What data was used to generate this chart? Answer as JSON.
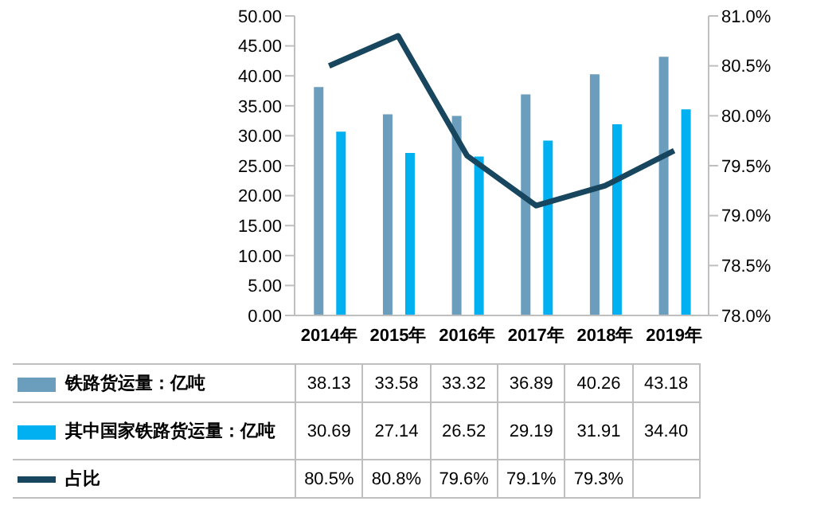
{
  "chart_data": {
    "type": "bar",
    "categories": [
      "2014年",
      "2015年",
      "2016年",
      "2017年",
      "2018年",
      "2019年"
    ],
    "series": [
      {
        "name": "铁路货运量：亿吨",
        "color": "#6b9dbd",
        "values": [
          38.13,
          33.58,
          33.32,
          36.89,
          40.26,
          43.18
        ],
        "value_labels": [
          "38.13",
          "33.58",
          "33.32",
          "36.89",
          "40.26",
          "43.18"
        ]
      },
      {
        "name": "其中国家铁路货运量：亿吨",
        "color": "#00b0f0",
        "values": [
          30.69,
          27.14,
          26.52,
          29.19,
          31.91,
          34.4
        ],
        "value_labels": [
          "30.69",
          "27.14",
          "26.52",
          "29.19",
          "31.91",
          "34.40"
        ]
      },
      {
        "name": "占比",
        "type": "line",
        "axis": "y2",
        "color": "#17465e",
        "values": [
          80.5,
          80.8,
          79.6,
          79.1,
          79.3,
          79.65
        ],
        "value_labels": [
          "80.5%",
          "80.8%",
          "79.6%",
          "79.1%",
          "79.3%",
          null
        ]
      }
    ],
    "ylim": [
      0,
      50
    ],
    "yticks": [
      {
        "value": 0,
        "label": "0.00"
      },
      {
        "value": 5,
        "label": "5.00"
      },
      {
        "value": 10,
        "label": "10.00"
      },
      {
        "value": 15,
        "label": "15.00"
      },
      {
        "value": 20,
        "label": "20.00"
      },
      {
        "value": 25,
        "label": "25.00"
      },
      {
        "value": 30,
        "label": "30.00"
      },
      {
        "value": 35,
        "label": "35.00"
      },
      {
        "value": 40,
        "label": "40.00"
      },
      {
        "value": 45,
        "label": "45.00"
      },
      {
        "value": 50,
        "label": "50.00"
      }
    ],
    "y2lim": [
      78,
      81
    ],
    "y2ticks": [
      {
        "value": 78,
        "label": "78.0%"
      },
      {
        "value": 78.5,
        "label": "78.5%"
      },
      {
        "value": 79,
        "label": "79.0%"
      },
      {
        "value": 79.5,
        "label": "79.5%"
      },
      {
        "value": 80,
        "label": "80.0%"
      },
      {
        "value": 80.5,
        "label": "80.5%"
      },
      {
        "value": 81,
        "label": "81.0%"
      }
    ],
    "legend": "bottom",
    "marker": "none"
  }
}
